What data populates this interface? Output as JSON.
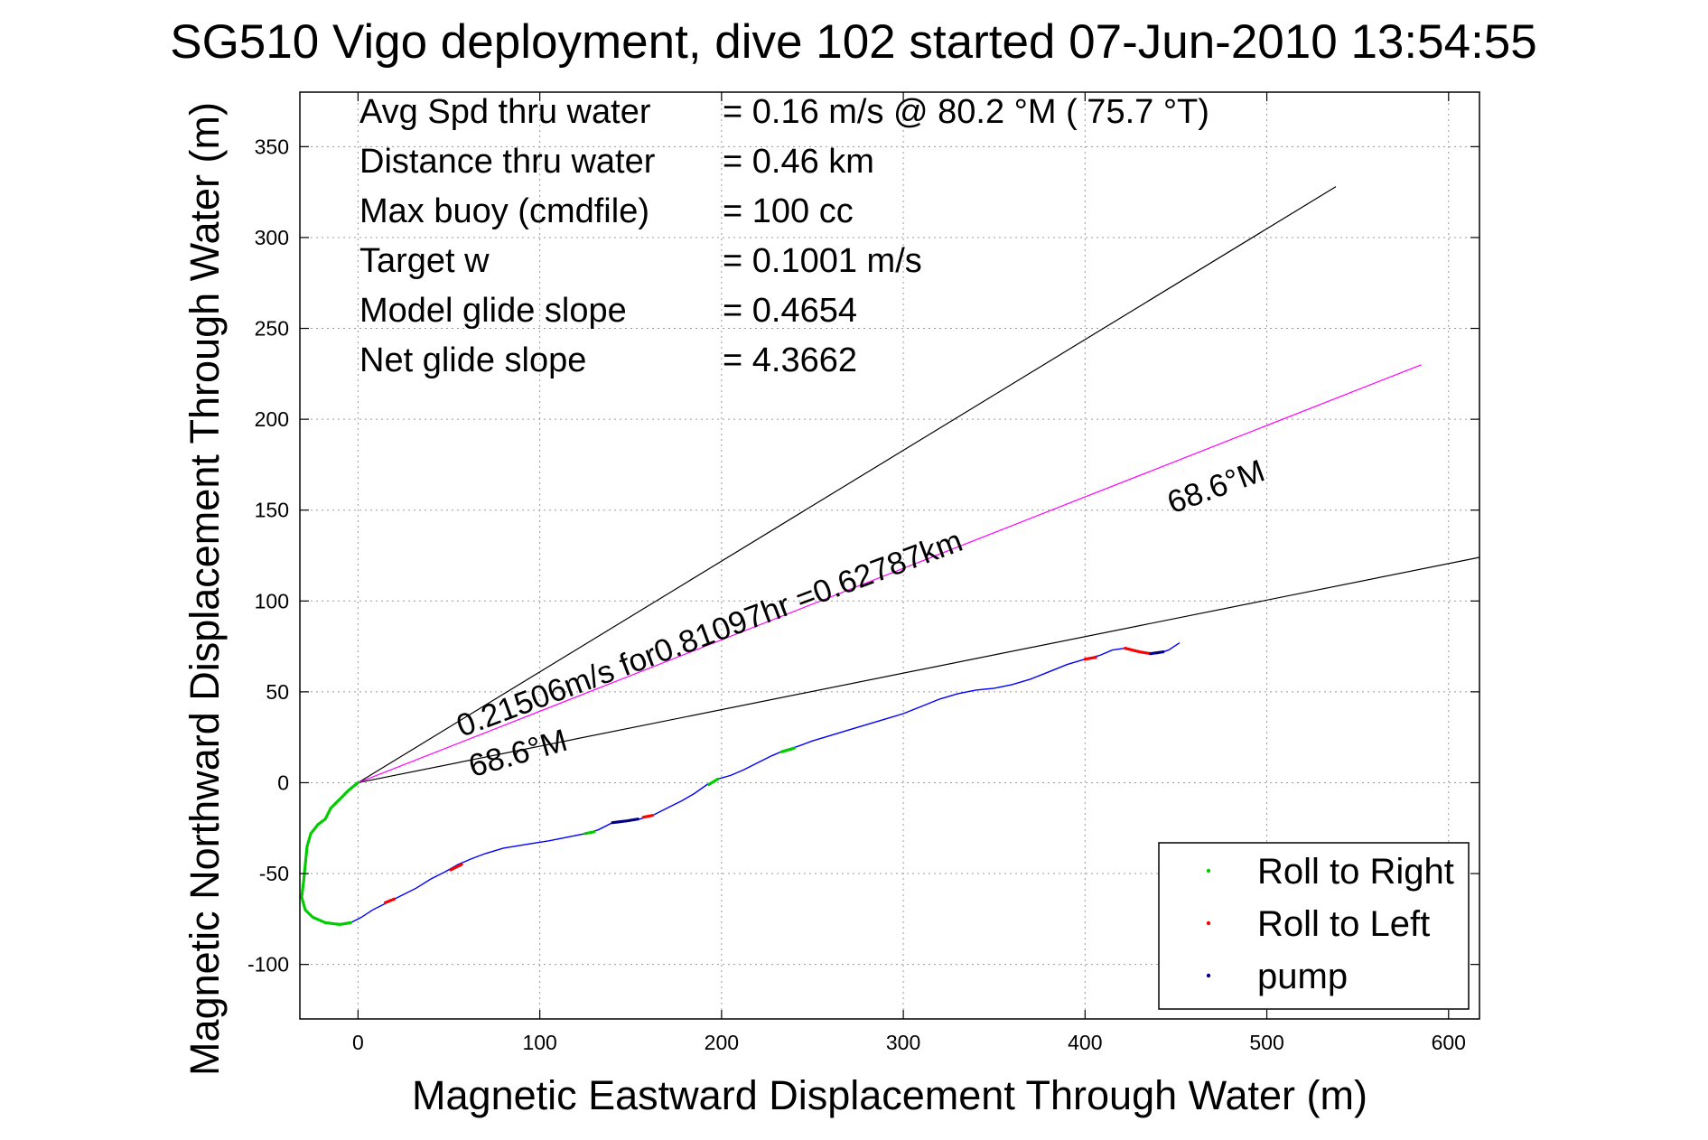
{
  "chart_data": {
    "type": "line",
    "title": "SG510 Vigo deployment, dive 102 started 07-Jun-2010 13:54:55",
    "xlabel": "Magnetic Eastward Displacement Through Water (m)",
    "ylabel": "Magnetic Northward Displacement Through Water (m)",
    "xlim": [
      -32,
      617
    ],
    "ylim": [
      -130,
      380
    ],
    "xticks": [
      0,
      100,
      200,
      300,
      400,
      500,
      600
    ],
    "yticks": [
      -100,
      -50,
      0,
      50,
      100,
      150,
      200,
      250,
      300,
      350
    ],
    "grid": true,
    "stats": [
      {
        "label": "Avg Spd thru water",
        "value": "=  0.16 m/s @  80.2 °M ( 75.7 °T)"
      },
      {
        "label": "Distance thru water",
        "value": "=  0.46 km"
      },
      {
        "label": "Max buoy (cmdfile)",
        "value": "= 100 cc"
      },
      {
        "label": "Target w",
        "value": "= 0.1001 m/s"
      },
      {
        "label": "Model glide slope",
        "value": "= 0.4654"
      },
      {
        "label": "Net glide slope",
        "value": "= 4.3662"
      }
    ],
    "series": [
      {
        "name": "track",
        "color": "#0000ff",
        "points": [
          [
            0,
            0
          ],
          [
            -5,
            -4
          ],
          [
            -10,
            -9
          ],
          [
            -15,
            -14
          ],
          [
            -18,
            -20
          ],
          [
            -22,
            -23
          ],
          [
            -26,
            -28
          ],
          [
            -28,
            -35
          ],
          [
            -29,
            -45
          ],
          [
            -30,
            -55
          ],
          [
            -31,
            -63
          ],
          [
            -29,
            -70
          ],
          [
            -25,
            -74
          ],
          [
            -18,
            -77
          ],
          [
            -10,
            -78
          ],
          [
            -4,
            -77
          ],
          [
            2,
            -74
          ],
          [
            8,
            -70
          ],
          [
            16,
            -66
          ],
          [
            24,
            -62
          ],
          [
            32,
            -58
          ],
          [
            40,
            -53
          ],
          [
            48,
            -49
          ],
          [
            55,
            -45
          ],
          [
            62,
            -42
          ],
          [
            70,
            -39
          ],
          [
            80,
            -36
          ],
          [
            92,
            -34
          ],
          [
            105,
            -32
          ],
          [
            115,
            -30
          ],
          [
            125,
            -28
          ],
          [
            132,
            -26
          ],
          [
            140,
            -22
          ],
          [
            148,
            -21
          ],
          [
            155,
            -20
          ],
          [
            162,
            -18
          ],
          [
            170,
            -14
          ],
          [
            178,
            -10
          ],
          [
            185,
            -6
          ],
          [
            192,
            -1
          ],
          [
            198,
            2
          ],
          [
            205,
            4
          ],
          [
            212,
            7
          ],
          [
            220,
            11
          ],
          [
            228,
            15
          ],
          [
            235,
            18
          ],
          [
            242,
            20
          ],
          [
            250,
            23
          ],
          [
            260,
            26
          ],
          [
            270,
            29
          ],
          [
            280,
            32
          ],
          [
            290,
            35
          ],
          [
            300,
            38
          ],
          [
            310,
            42
          ],
          [
            320,
            46
          ],
          [
            330,
            49
          ],
          [
            340,
            51
          ],
          [
            350,
            52
          ],
          [
            360,
            54
          ],
          [
            370,
            57
          ],
          [
            380,
            61
          ],
          [
            390,
            65
          ],
          [
            400,
            68
          ],
          [
            408,
            70
          ],
          [
            415,
            73
          ],
          [
            422,
            74
          ],
          [
            428,
            72
          ],
          [
            434,
            71
          ],
          [
            440,
            71
          ],
          [
            446,
            73
          ],
          [
            452,
            77
          ]
        ]
      },
      {
        "name": "Roll to Right",
        "color": "#00cc00",
        "segments": [
          [
            [
              0,
              0
            ],
            [
              -5,
              -4
            ],
            [
              -10,
              -9
            ],
            [
              -15,
              -14
            ],
            [
              -18,
              -20
            ],
            [
              -22,
              -23
            ],
            [
              -26,
              -28
            ],
            [
              -28,
              -35
            ],
            [
              -29,
              -45
            ],
            [
              -30,
              -55
            ],
            [
              -31,
              -63
            ],
            [
              -29,
              -70
            ],
            [
              -25,
              -74
            ],
            [
              -18,
              -77
            ],
            [
              -10,
              -78
            ],
            [
              -4,
              -77
            ]
          ],
          [
            [
              125,
              -28
            ],
            [
              130,
              -27
            ]
          ],
          [
            [
              193,
              -1
            ],
            [
              198,
              2
            ]
          ],
          [
            [
              233,
              17
            ],
            [
              240,
              19
            ]
          ]
        ]
      },
      {
        "name": "Roll to Left",
        "color": "#ff0000",
        "segments": [
          [
            [
              15,
              -66
            ],
            [
              20,
              -64
            ]
          ],
          [
            [
              51,
              -48
            ],
            [
              57,
              -45
            ]
          ],
          [
            [
              157,
              -19
            ],
            [
              162,
              -18
            ]
          ],
          [
            [
              400,
              68
            ],
            [
              406,
              69
            ]
          ],
          [
            [
              422,
              74
            ],
            [
              430,
              72
            ],
            [
              436,
              71
            ]
          ]
        ]
      },
      {
        "name": "pump",
        "color": "#000080",
        "segments": [
          [
            [
              140,
              -22
            ],
            [
              148,
              -21
            ],
            [
              154,
              -20
            ]
          ],
          [
            [
              436,
              71
            ],
            [
              443,
              72
            ]
          ]
        ]
      }
    ],
    "reference_lines": [
      {
        "color": "#000000",
        "from": [
          0,
          0
        ],
        "to": [
          538,
          328
        ]
      },
      {
        "color": "#000000",
        "from": [
          0,
          0
        ],
        "to": [
          617,
          124
        ]
      },
      {
        "color": "#ff00ff",
        "from": [
          0,
          0
        ],
        "to": [
          585,
          230
        ]
      }
    ],
    "annotations": [
      {
        "text": "0.21506m/s for0.81097hr =0.62787km",
        "x": 57,
        "y": 25,
        "angle_deg": -20.5
      },
      {
        "text": "68.6°M",
        "x": 63,
        "y": 3,
        "angle_deg": -16
      },
      {
        "text": "68.6°M",
        "x": 448,
        "y": 148,
        "angle_deg": -20
      }
    ],
    "legend": {
      "position": "bottom-right",
      "entries": [
        {
          "label": "Roll to Right",
          "color": "#00cc00"
        },
        {
          "label": "Roll to Left",
          "color": "#ff0000"
        },
        {
          "label": "pump",
          "color": "#000080"
        }
      ]
    }
  }
}
